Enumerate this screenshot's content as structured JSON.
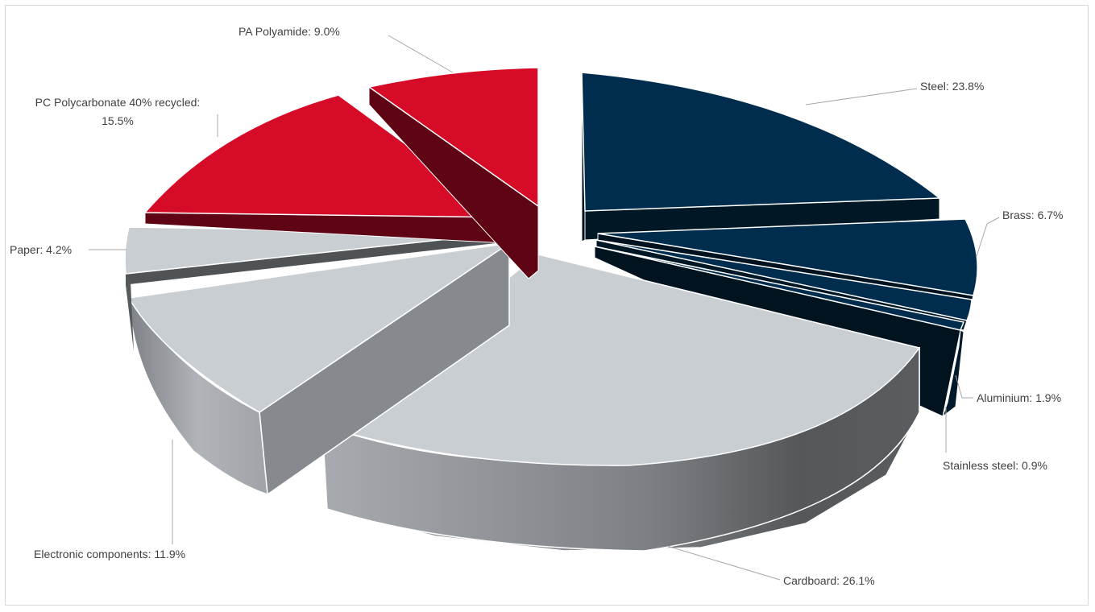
{
  "chart_data": {
    "type": "pie",
    "style": "3d-exploded",
    "slices": [
      {
        "label": "Steel",
        "value": 23.8,
        "text": "Steel: 23.8%",
        "color": "#002d4d"
      },
      {
        "label": "Brass",
        "value": 6.7,
        "text": "Brass: 6.7%",
        "color": "#002d4d"
      },
      {
        "label": "Aluminium",
        "value": 1.9,
        "text": "Aluminium: 1.9%",
        "color": "#002d4d"
      },
      {
        "label": "Stainless steel",
        "value": 0.9,
        "text": "Stainless steel: 0.9%",
        "color": "#002d4d"
      },
      {
        "label": "Cardboard",
        "value": 26.1,
        "text": "Cardboard: 26.1%",
        "color": "#c9ced2"
      },
      {
        "label": "Electronic components",
        "value": 11.9,
        "text": "Electronic components: 11.9%",
        "color": "#c9ced2"
      },
      {
        "label": "Paper",
        "value": 4.2,
        "text": "Paper: 4.2%",
        "color": "#c9ced2"
      },
      {
        "label": "PC Polycarbonate 40% recycled",
        "value": 15.5,
        "text_lines": [
          "PC Polycarbonate 40% recycled:",
          "15.5%"
        ],
        "color": "#d50b28"
      },
      {
        "label": "PA Polyamide",
        "value": 9.0,
        "text": "PA Polyamide: 9.0%",
        "color": "#d50b28"
      }
    ]
  }
}
